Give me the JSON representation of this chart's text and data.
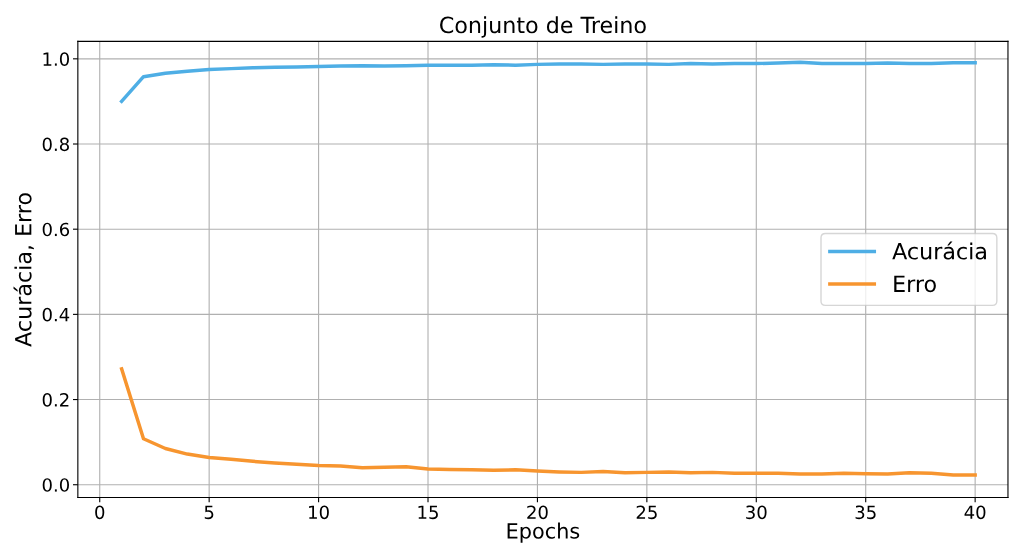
{
  "chart_data": {
    "type": "line",
    "title": "Conjunto de Treino",
    "xlabel": "Epochs",
    "ylabel": "Acurácia, Erro",
    "x": [
      1,
      2,
      3,
      4,
      5,
      6,
      7,
      8,
      9,
      10,
      11,
      12,
      13,
      14,
      15,
      16,
      17,
      18,
      19,
      20,
      21,
      22,
      23,
      24,
      25,
      26,
      27,
      28,
      29,
      30,
      31,
      32,
      33,
      34,
      35,
      36,
      37,
      38,
      39,
      40
    ],
    "series": [
      {
        "name": "Acurácia",
        "color": "#4eaee5",
        "values": [
          0.9,
          0.958,
          0.966,
          0.971,
          0.975,
          0.977,
          0.979,
          0.98,
          0.981,
          0.982,
          0.983,
          0.984,
          0.983,
          0.984,
          0.985,
          0.985,
          0.985,
          0.986,
          0.985,
          0.987,
          0.988,
          0.988,
          0.987,
          0.988,
          0.988,
          0.987,
          0.989,
          0.988,
          0.989,
          0.989,
          0.99,
          0.992,
          0.989,
          0.989,
          0.989,
          0.99,
          0.989,
          0.989,
          0.991,
          0.991
        ]
      },
      {
        "name": "Erro",
        "color": "#f7952f",
        "values": [
          0.272,
          0.108,
          0.085,
          0.072,
          0.064,
          0.06,
          0.055,
          0.051,
          0.048,
          0.045,
          0.044,
          0.04,
          0.041,
          0.042,
          0.037,
          0.036,
          0.035,
          0.034,
          0.035,
          0.032,
          0.03,
          0.029,
          0.031,
          0.028,
          0.029,
          0.03,
          0.028,
          0.029,
          0.027,
          0.027,
          0.027,
          0.025,
          0.025,
          0.027,
          0.026,
          0.025,
          0.028,
          0.027,
          0.023,
          0.023
        ]
      }
    ],
    "xlim": [
      -1,
      41.5
    ],
    "xticks": [
      0,
      5,
      10,
      15,
      20,
      25,
      30,
      35,
      40
    ],
    "ylim": [
      -0.03,
      1.041
    ],
    "yticks": [
      {
        "value": 0,
        "label": "0.0"
      },
      {
        "value": 0.2,
        "label": "0.2"
      },
      {
        "value": 0.4,
        "label": "0.4"
      },
      {
        "value": 0.6,
        "label": "0.6"
      },
      {
        "value": 0.8,
        "label": "0.8"
      },
      {
        "value": 1.0,
        "label": "1.0"
      }
    ],
    "grid": true,
    "legend": "center right",
    "marker": "none",
    "line_style": "solid"
  }
}
